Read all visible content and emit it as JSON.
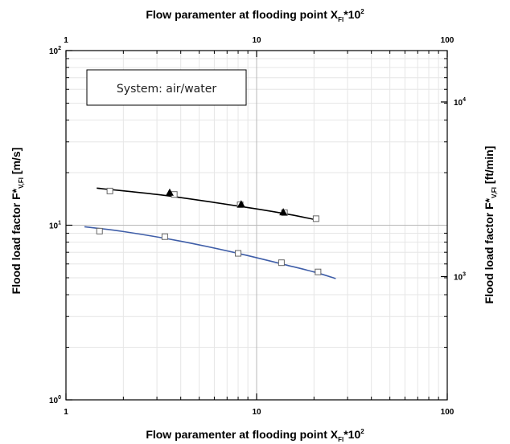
{
  "chart_data": {
    "type": "scatter",
    "title": "",
    "x_scale": "log",
    "y_scale": "log",
    "xlim": [
      1,
      100
    ],
    "ylim": [
      1,
      100
    ],
    "xlabel_bottom": {
      "main": "Flow paramenter at flooding point X",
      "sub": "Fl",
      "tail": "*10",
      "sup": "2"
    },
    "xlabel_top": {
      "main": "Flow paramenter at flooding point X",
      "sub": "Fl",
      "tail": "*10",
      "sup": "2"
    },
    "ylabel_left": {
      "main": "Flood load factor F*",
      "sub": "V,Fl",
      "tail": " [m/s]"
    },
    "ylabel_right": {
      "main": "Flood load factor F*",
      "sub": "V,Fl",
      "tail": " [ft/min]"
    },
    "x_ticks": [
      {
        "value": 1,
        "label": "1"
      },
      {
        "value": 10,
        "label": "10"
      },
      {
        "value": 100,
        "label": "100"
      }
    ],
    "y_ticks_left": [
      {
        "value": 1,
        "base": "10",
        "exp": "0"
      },
      {
        "value": 10,
        "base": "10",
        "exp": "1"
      },
      {
        "value": 100,
        "base": "10",
        "exp": "2"
      }
    ],
    "y_ticks_right": [
      {
        "value": 5.08,
        "base": "10",
        "exp": "3"
      },
      {
        "value": 50.8,
        "base": "10",
        "exp": "4"
      }
    ],
    "annotation": "System: air/water",
    "grid": true,
    "series": [
      {
        "color": "#000000",
        "curve": [
          [
            1.45,
            16.3
          ],
          [
            3,
            15.0
          ],
          [
            6,
            13.5
          ],
          [
            10,
            12.4
          ],
          [
            15,
            11.5
          ],
          [
            20,
            10.8
          ]
        ],
        "squares": [
          [
            1.7,
            15.7
          ],
          [
            3.7,
            15.0
          ],
          [
            8.2,
            13.1
          ],
          [
            14,
            11.8
          ],
          [
            20.5,
            10.9
          ]
        ],
        "triangles": [
          [
            3.5,
            15.4
          ],
          [
            8.3,
            13.2
          ],
          [
            13.8,
            11.9
          ]
        ]
      },
      {
        "color": "#3f5ea8",
        "curve": [
          [
            1.25,
            9.8
          ],
          [
            2,
            9.2
          ],
          [
            4,
            8.1
          ],
          [
            8,
            6.9
          ],
          [
            14,
            5.95
          ],
          [
            20,
            5.4
          ],
          [
            26,
            4.95
          ]
        ],
        "squares": [
          [
            1.5,
            9.25
          ],
          [
            3.3,
            8.6
          ],
          [
            8,
            6.9
          ],
          [
            13.5,
            6.1
          ],
          [
            21,
            5.4
          ]
        ],
        "triangles": []
      }
    ]
  }
}
